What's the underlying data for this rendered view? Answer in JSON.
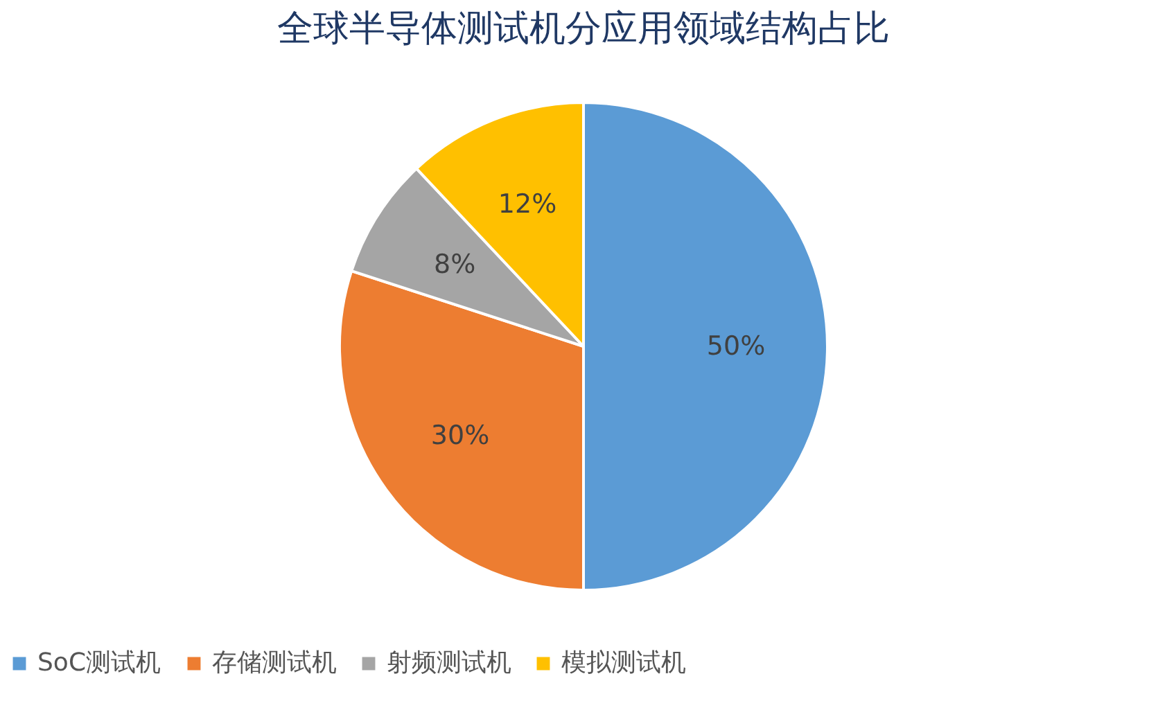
{
  "chart_data": {
    "type": "pie",
    "title": "全球半导体测试机分应用领域结构占比",
    "categories": [
      "SoC测试机",
      "存储测试机",
      "射频测试机",
      "模拟测试机"
    ],
    "values": [
      50,
      30,
      8,
      12
    ],
    "value_labels": [
      "50%",
      "30%",
      "8%",
      "12%"
    ],
    "colors": [
      "#5b9bd5",
      "#ed7d31",
      "#a5a5a5",
      "#ffc000"
    ],
    "legend": "bottom"
  }
}
